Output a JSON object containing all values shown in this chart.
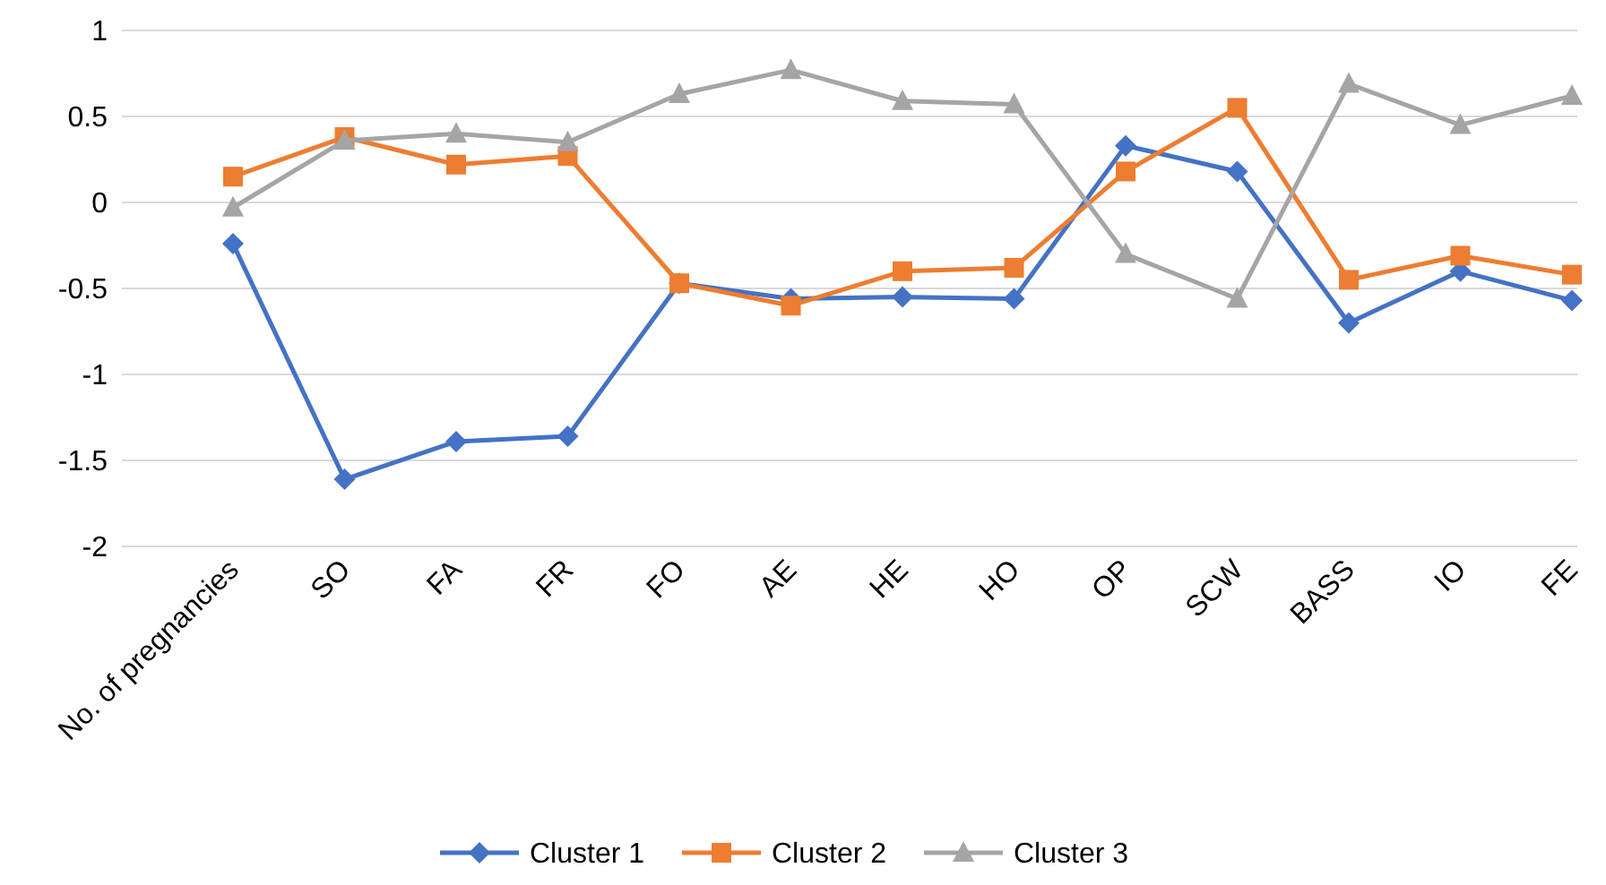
{
  "chart_data": {
    "type": "line",
    "categories": [
      "No. of pregnancies",
      "SO",
      "FA",
      "FR",
      "FO",
      "AE",
      "HE",
      "HO",
      "OP",
      "SCW",
      "BASS",
      "IO",
      "FE"
    ],
    "series": [
      {
        "name": "Cluster 1",
        "color": "#4472c4",
        "marker": "diamond",
        "values": [
          -0.24,
          -1.61,
          -1.39,
          -1.36,
          -0.47,
          -0.56,
          -0.55,
          -0.56,
          0.33,
          0.18,
          -0.7,
          -0.4,
          -0.57
        ]
      },
      {
        "name": "Cluster 2",
        "color": "#ed7d31",
        "marker": "square",
        "values": [
          0.15,
          0.38,
          0.22,
          0.27,
          -0.47,
          -0.6,
          -0.4,
          -0.38,
          0.18,
          0.55,
          -0.45,
          -0.31,
          -0.42
        ]
      },
      {
        "name": "Cluster 3",
        "color": "#a5a5a5",
        "marker": "triangle",
        "values": [
          -0.03,
          0.36,
          0.4,
          0.35,
          0.63,
          0.77,
          0.59,
          0.57,
          -0.3,
          -0.56,
          0.69,
          0.45,
          0.62
        ]
      }
    ],
    "ylim": [
      -2,
      1
    ],
    "yticks": [
      -2,
      -1.5,
      -1,
      -0.5,
      0,
      0.5,
      1
    ],
    "grid": "y",
    "legend": "bottom"
  }
}
